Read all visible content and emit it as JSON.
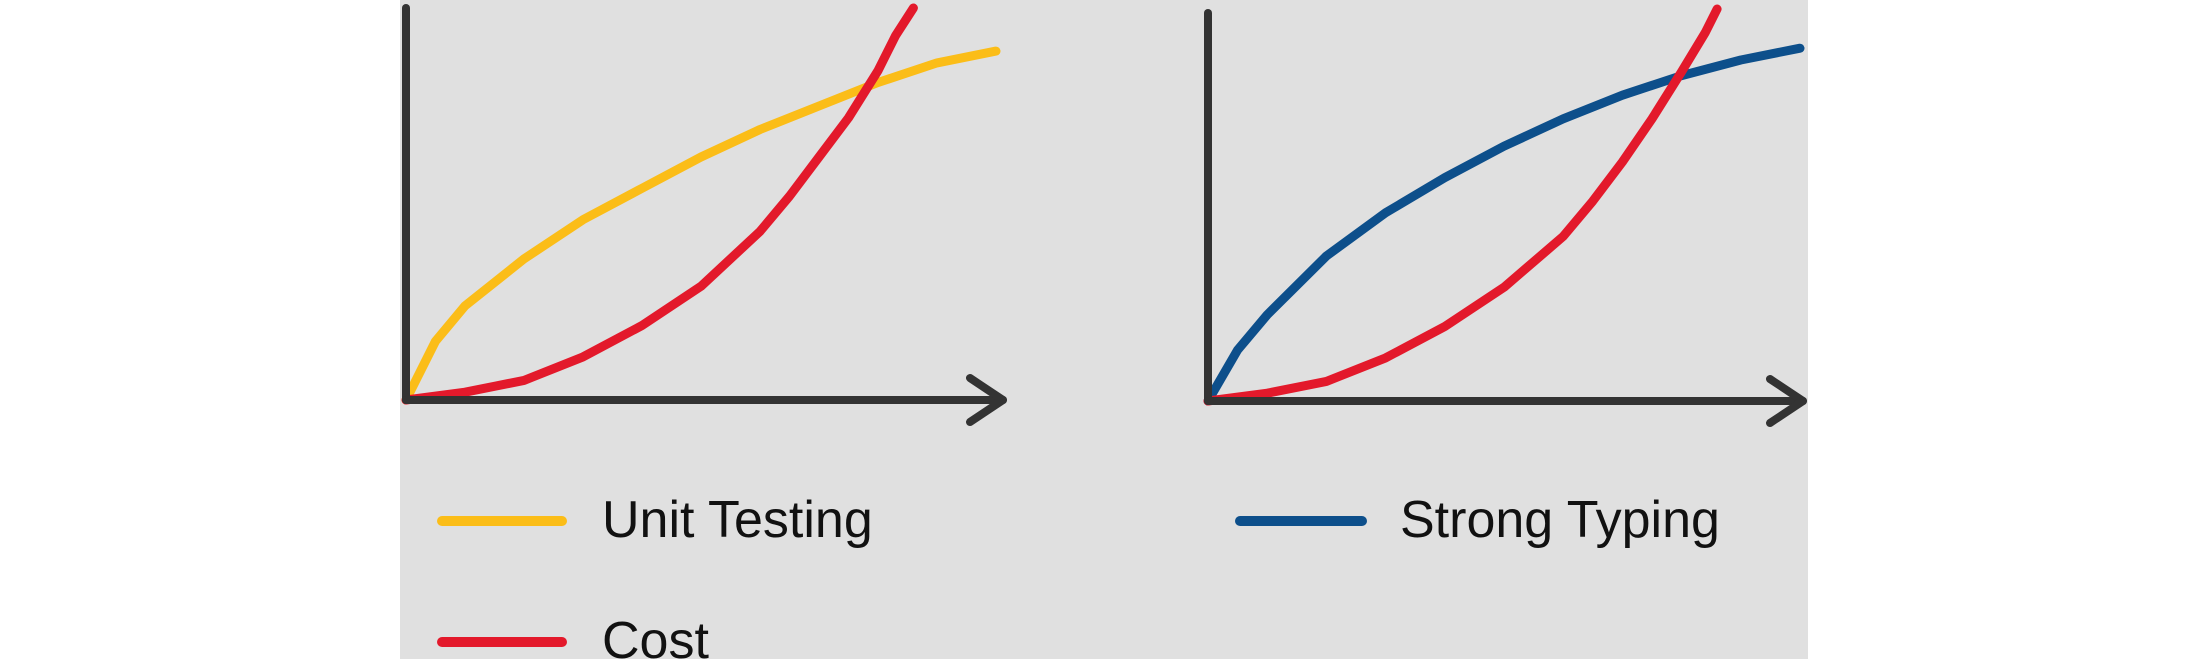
{
  "chart_data": [
    {
      "type": "line",
      "title": "",
      "xlabel": "",
      "ylabel": "",
      "xlim": [
        0,
        1
      ],
      "ylim": [
        0,
        1
      ],
      "grid": false,
      "legend": "bottom-left",
      "series": [
        {
          "name": "Unit Testing",
          "color": "#fbbd18",
          "x": [
            0,
            0.05,
            0.1,
            0.2,
            0.3,
            0.4,
            0.5,
            0.6,
            0.7,
            0.8,
            0.9,
            1.0
          ],
          "y": [
            0,
            0.15,
            0.24,
            0.36,
            0.46,
            0.54,
            0.62,
            0.69,
            0.75,
            0.81,
            0.86,
            0.89
          ]
        },
        {
          "name": "Cost",
          "color": "#e3192b",
          "x": [
            0,
            0.1,
            0.2,
            0.3,
            0.4,
            0.5,
            0.6,
            0.65,
            0.7,
            0.75,
            0.8,
            0.83,
            0.86
          ],
          "y": [
            0,
            0.02,
            0.05,
            0.11,
            0.19,
            0.29,
            0.43,
            0.52,
            0.62,
            0.72,
            0.84,
            0.93,
            1.0
          ]
        }
      ]
    },
    {
      "type": "line",
      "title": "",
      "xlabel": "",
      "ylabel": "",
      "xlim": [
        0,
        1
      ],
      "ylim": [
        0,
        1
      ],
      "grid": false,
      "legend": "bottom-right",
      "series": [
        {
          "name": "Strong Typing",
          "color": "#0d4f8b",
          "x": [
            0,
            0.05,
            0.1,
            0.2,
            0.3,
            0.4,
            0.5,
            0.6,
            0.7,
            0.8,
            0.9,
            1.0
          ],
          "y": [
            0,
            0.13,
            0.22,
            0.37,
            0.48,
            0.57,
            0.65,
            0.72,
            0.78,
            0.83,
            0.87,
            0.9
          ]
        },
        {
          "name": "Cost",
          "color": "#e3192b",
          "x": [
            0,
            0.1,
            0.2,
            0.3,
            0.4,
            0.5,
            0.6,
            0.65,
            0.7,
            0.75,
            0.8,
            0.84,
            0.86
          ],
          "y": [
            0,
            0.02,
            0.05,
            0.11,
            0.19,
            0.29,
            0.42,
            0.51,
            0.61,
            0.72,
            0.84,
            0.94,
            1.0
          ]
        }
      ]
    }
  ],
  "legend": {
    "unit_testing_label": "Unit Testing",
    "strong_typing_label": "Strong Typing",
    "cost_label": "Cost"
  },
  "colors": {
    "axis": "#333333",
    "background": "#e0e0e0",
    "unit_testing": "#fbbd18",
    "strong_typing": "#0d4f8b",
    "cost": "#e3192b"
  }
}
